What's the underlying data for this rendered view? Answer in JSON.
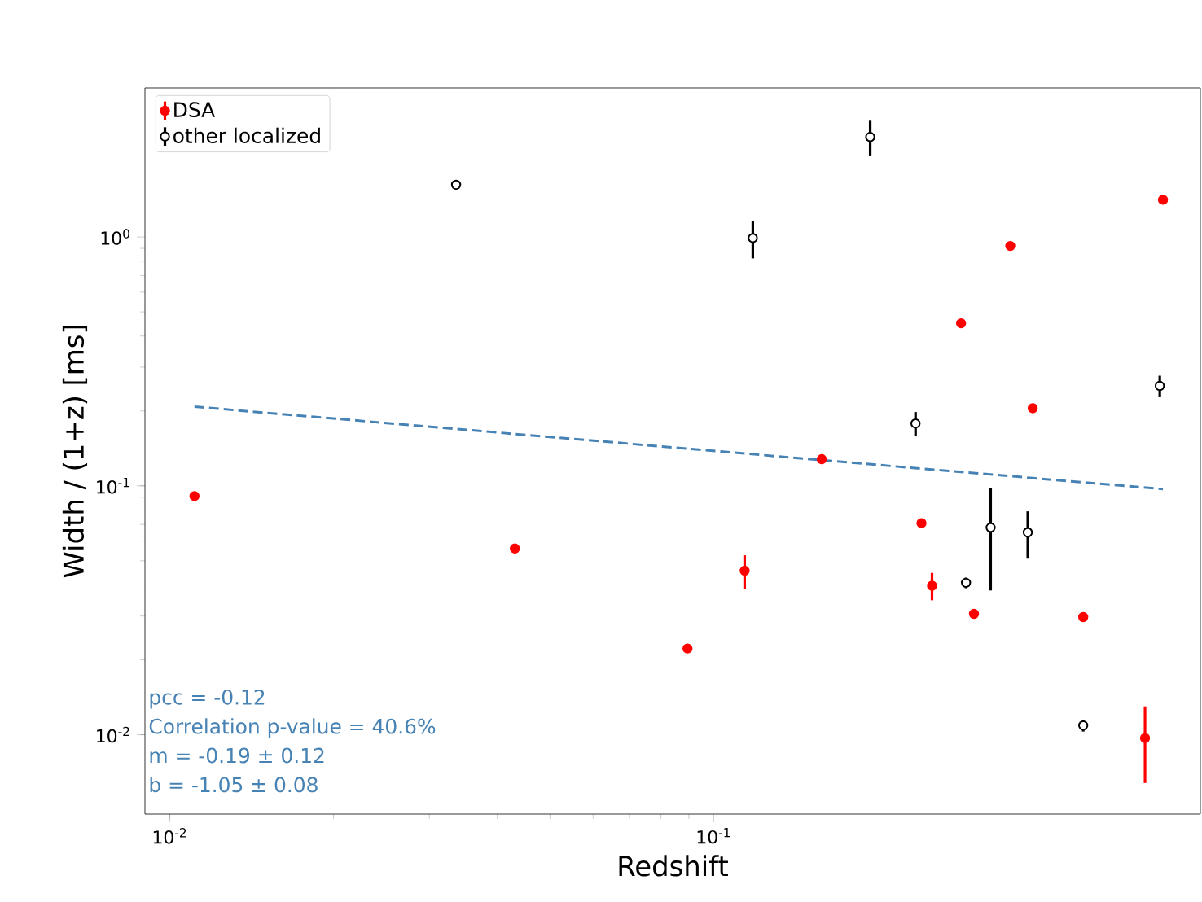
{
  "chart_data": {
    "type": "scatter",
    "xlabel": "Redshift",
    "ylabel": "Width / (1+z) [ms]",
    "log": "xy",
    "legend": "top left",
    "xlim": [
      0.009,
      0.785
    ],
    "ylim": [
      0.0048,
      3.97
    ],
    "xticks": [
      {
        "value": 0.01,
        "label": "10$^{-2}$"
      },
      {
        "value": 0.1,
        "label": "10$^{-1}$"
      }
    ],
    "yticks": [
      {
        "value": 0.01,
        "label": "10$^{-2}$"
      },
      {
        "value": 0.1,
        "label": "10$^{-1}$"
      },
      {
        "value": 1,
        "label": "10$^{0}$"
      }
    ],
    "series": [
      {
        "name": "DSA",
        "color": "#ff0000",
        "marker": "circle",
        "x": [
          0.0111,
          0.0431,
          0.0895,
          0.114,
          0.158,
          0.241,
          0.252,
          0.285,
          0.301,
          0.351,
          0.386,
          0.478,
          0.621,
          0.67
        ],
        "values": [
          0.091,
          0.056,
          0.0222,
          0.0456,
          0.128,
          0.0708,
          0.0397,
          0.45,
          0.0306,
          0.92,
          0.205,
          0.0297,
          0.0097,
          1.41
        ],
        "errors": [
          null,
          null,
          null,
          0.007,
          null,
          null,
          0.005,
          null,
          null,
          null,
          null,
          null,
          0.0033,
          null
        ]
      },
      {
        "name": "other localized",
        "color": "#000000",
        "marker": "circle",
        "x": [
          0.0336,
          0.118,
          0.194,
          0.235,
          0.291,
          0.323,
          0.378,
          0.478,
          0.661
        ],
        "values": [
          1.62,
          0.99,
          2.52,
          0.178,
          0.0408,
          0.068,
          0.065,
          0.0109,
          0.252
        ],
        "errors": [
          0.04,
          0.17,
          0.41,
          0.02,
          0.002,
          0.03,
          0.014,
          0.0006,
          0.025
        ]
      },
      {
        "type": "line",
        "color": "#4682b4",
        "line_style": "dashed",
        "marker": "none",
        "x": [
          0.0111,
          0.67
        ],
        "values": [
          0.208,
          0.097
        ]
      }
    ],
    "annotations": [
      "pcc = -0.12",
      "Correlation p-value = 40.6%",
      "m = -0.19 ± 0.12",
      "b = -1.05 ± 0.08"
    ]
  }
}
